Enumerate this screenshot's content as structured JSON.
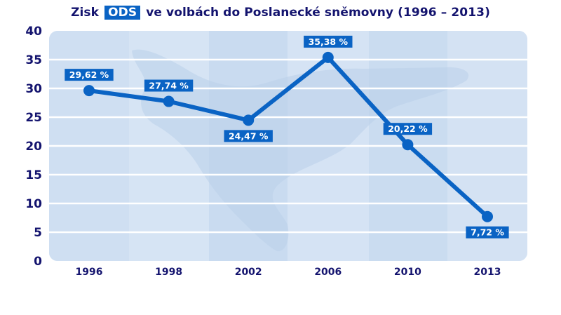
{
  "title": {
    "prefix": "Zisk",
    "highlight": "ODS",
    "suffix": "ve volbách do Poslanecké sněmovny (1996 – 2013)"
  },
  "colors": {
    "title_text": "#13136e",
    "accent": "#0a63c4",
    "plot_bg": "#d3e2f3",
    "band": "#c9dbf0",
    "map_shape": "#b8cfe9",
    "gridline": "#ffffff"
  },
  "chart_data": {
    "type": "line",
    "title": "Zisk ODS ve volbách do Poslanecké sněmovny (1996 – 2013)",
    "xlabel": "",
    "ylabel": "",
    "categories": [
      "1996",
      "1998",
      "2002",
      "2006",
      "2010",
      "2013"
    ],
    "series": [
      {
        "name": "ODS",
        "values": [
          29.62,
          27.74,
          24.47,
          35.38,
          20.22,
          7.72
        ],
        "labels": [
          "29,62 %",
          "27,74 %",
          "24,47 %",
          "35,38 %",
          "20,22 %",
          "7,72 %"
        ]
      }
    ],
    "yticks": [
      "0",
      "5",
      "10",
      "15",
      "20",
      "25",
      "30",
      "35",
      "40"
    ],
    "ylim": [
      0,
      40
    ],
    "grid": true,
    "legend": "none"
  }
}
